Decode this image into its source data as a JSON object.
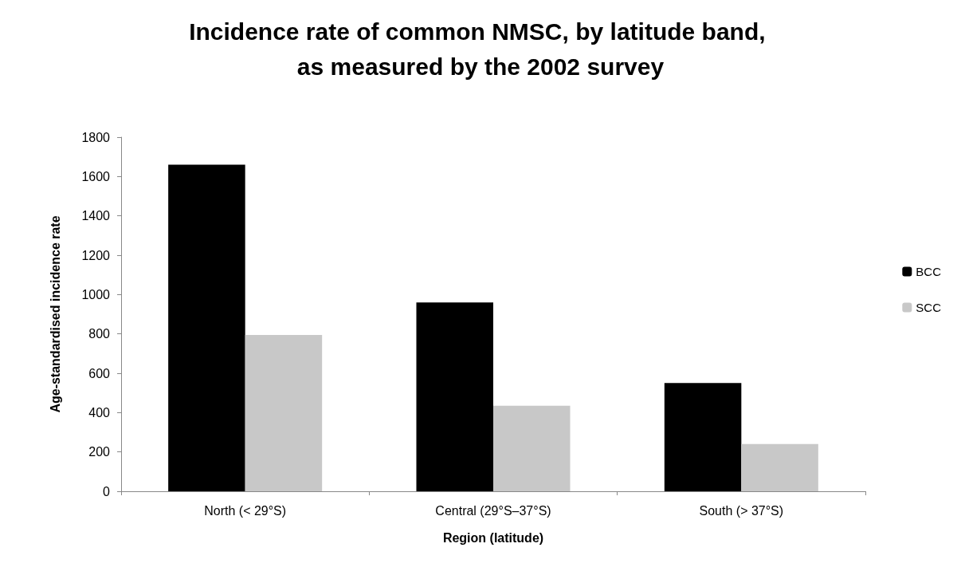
{
  "chart_data": {
    "type": "bar",
    "title": "Incidence rate of common NMSC, by latitude band, as measured by the 2002 survey",
    "xlabel": "Region (latitude)",
    "ylabel": "Age-standardised incidence rate",
    "categories": [
      "North (< 29°S)",
      "Central (29°S–37°S)",
      "South (> 37°S)"
    ],
    "series": [
      {
        "name": "BCC",
        "color": "#000000",
        "values": [
          1660,
          960,
          550
        ]
      },
      {
        "name": "SCC",
        "color": "#c8c8c8",
        "values": [
          795,
          435,
          240
        ]
      }
    ],
    "ylim": [
      0,
      1800
    ],
    "yticks": [
      0,
      200,
      400,
      600,
      800,
      1000,
      1200,
      1400,
      1600,
      1800
    ],
    "grid": false,
    "legend": "right"
  }
}
